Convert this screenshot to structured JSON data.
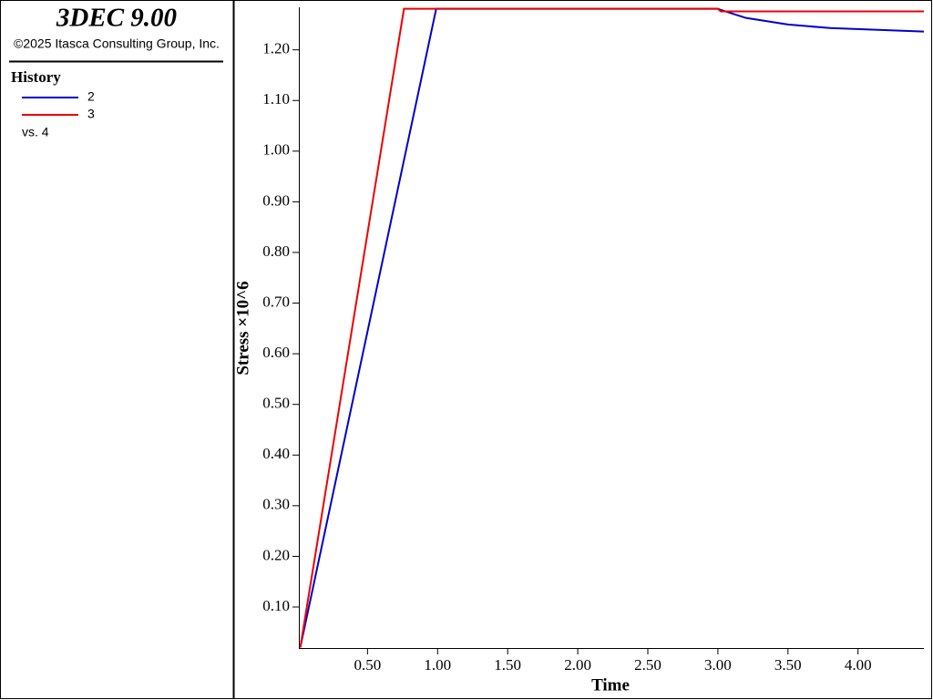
{
  "chart_data": {
    "type": "line",
    "title": "3DEC 9.00",
    "subtitle": "©2025 Itasca Consulting Group, Inc.",
    "legend_title": "History",
    "x_series_label": "vs. 4",
    "x_label": "Time",
    "y_label": "Stress ×10^6",
    "x": [
      0.02,
      0.76,
      0.99,
      3.0,
      3.02,
      3.2,
      3.5,
      3.8,
      4.1,
      4.47
    ],
    "series": [
      {
        "name": "2",
        "color": "#0000cc",
        "values": [
          0.02,
          0.982,
          1.281,
          1.281,
          1.279,
          1.263,
          1.25,
          1.243,
          1.24,
          1.236
        ]
      },
      {
        "name": "3",
        "color": "#ee0000",
        "values": [
          0.02,
          1.281,
          1.281,
          1.281,
          1.276,
          1.276,
          1.276,
          1.276,
          1.276,
          1.276
        ]
      }
    ],
    "xlim": [
      0.01,
      4.47
    ],
    "ylim": [
      0.019,
      1.284
    ],
    "xticks": [
      {
        "value": 0.5,
        "label": "0.50"
      },
      {
        "value": 1.0,
        "label": "1.00"
      },
      {
        "value": 1.5,
        "label": "1.50"
      },
      {
        "value": 2.0,
        "label": "2.00"
      },
      {
        "value": 2.5,
        "label": "2.50"
      },
      {
        "value": 3.0,
        "label": "3.00"
      },
      {
        "value": 3.5,
        "label": "3.50"
      },
      {
        "value": 4.0,
        "label": "4.00"
      }
    ],
    "yticks": [
      {
        "value": 0.1,
        "label": "0.10"
      },
      {
        "value": 0.2,
        "label": "0.20"
      },
      {
        "value": 0.3,
        "label": "0.30"
      },
      {
        "value": 0.4,
        "label": "0.40"
      },
      {
        "value": 0.5,
        "label": "0.50"
      },
      {
        "value": 0.6,
        "label": "0.60"
      },
      {
        "value": 0.7,
        "label": "0.70"
      },
      {
        "value": 0.8,
        "label": "0.80"
      },
      {
        "value": 0.9,
        "label": "0.90"
      },
      {
        "value": 1.0,
        "label": "1.00"
      },
      {
        "value": 1.1,
        "label": "1.10"
      },
      {
        "value": 1.2,
        "label": "1.20"
      }
    ]
  }
}
